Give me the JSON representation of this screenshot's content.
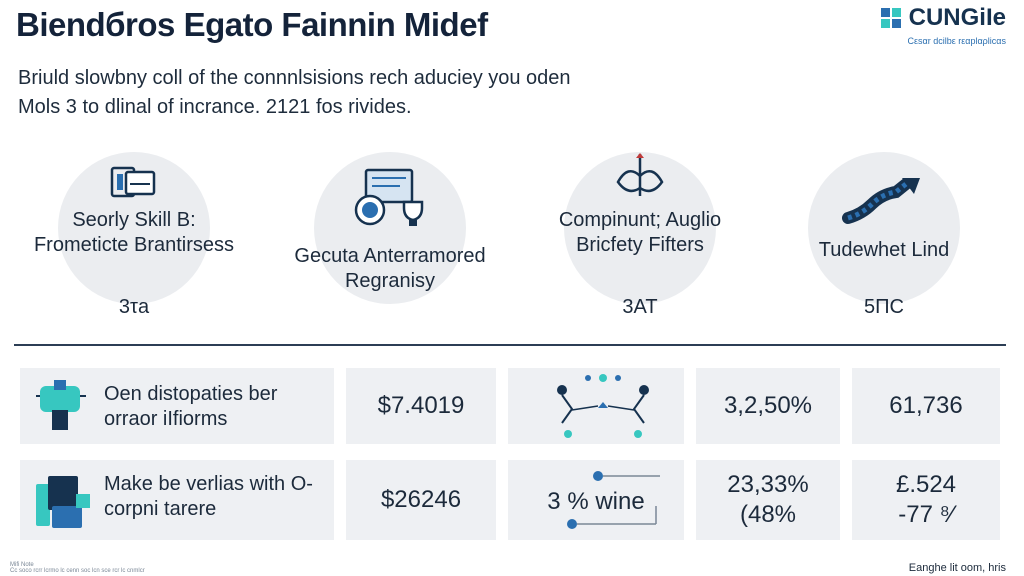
{
  "header": {
    "title": "Biendбros Egato Fainnin Midef",
    "brand_name": "CUNGiIe",
    "brand_tagline": "Cεsαr dcilbε rεαplαρlicαs"
  },
  "intro": {
    "line1": "Briuld slowbny coll of the connnlsisions rech aduciey you oden",
    "line2": "Mols 3 to dlinal of incrance. 2121 fos rivides."
  },
  "stats": [
    {
      "label": "Seorly Skill B: Frometicte Brantirsess",
      "value": "3τa",
      "icon": "tablet-icon"
    },
    {
      "label": "Gecuta Anterramored Regranisy",
      "value": "",
      "icon": "certificate-trophy-icon"
    },
    {
      "label": "Compinunt; Auglio Bricfety Fifters",
      "value": "3ΑΤ",
      "icon": "compass-pen-icon"
    },
    {
      "label": "Tudewhet Lind",
      "value": "5ΠC",
      "icon": "trend-arrow-icon"
    }
  ],
  "table": {
    "rows": [
      {
        "label": "Oen distopaties ber orraor iIfiorms",
        "amount": "$7.4019",
        "graphic_text": "",
        "percent": "3,2,50%",
        "count": "61,736"
      },
      {
        "label": "Make be verlias with O-corpni tarere",
        "amount": "$26246",
        "graphic_text": "3 % wine",
        "percent": "23,33% (48%",
        "count": "£.524 -77 ⁸⁄"
      }
    ]
  },
  "footer": {
    "left_line1": "Mifi Note",
    "left_line2": "Cc soco rcrr lcrmo lc cenn soc lcn sce rcr lc cnmlcr",
    "right": "Eanghe lit oom, hris"
  },
  "colors": {
    "accent": "#16324f",
    "teal": "#37c7c0",
    "blue": "#2b6fb0",
    "circle_bg": "#ebedf0",
    "panel_bg": "#eef0f3"
  }
}
